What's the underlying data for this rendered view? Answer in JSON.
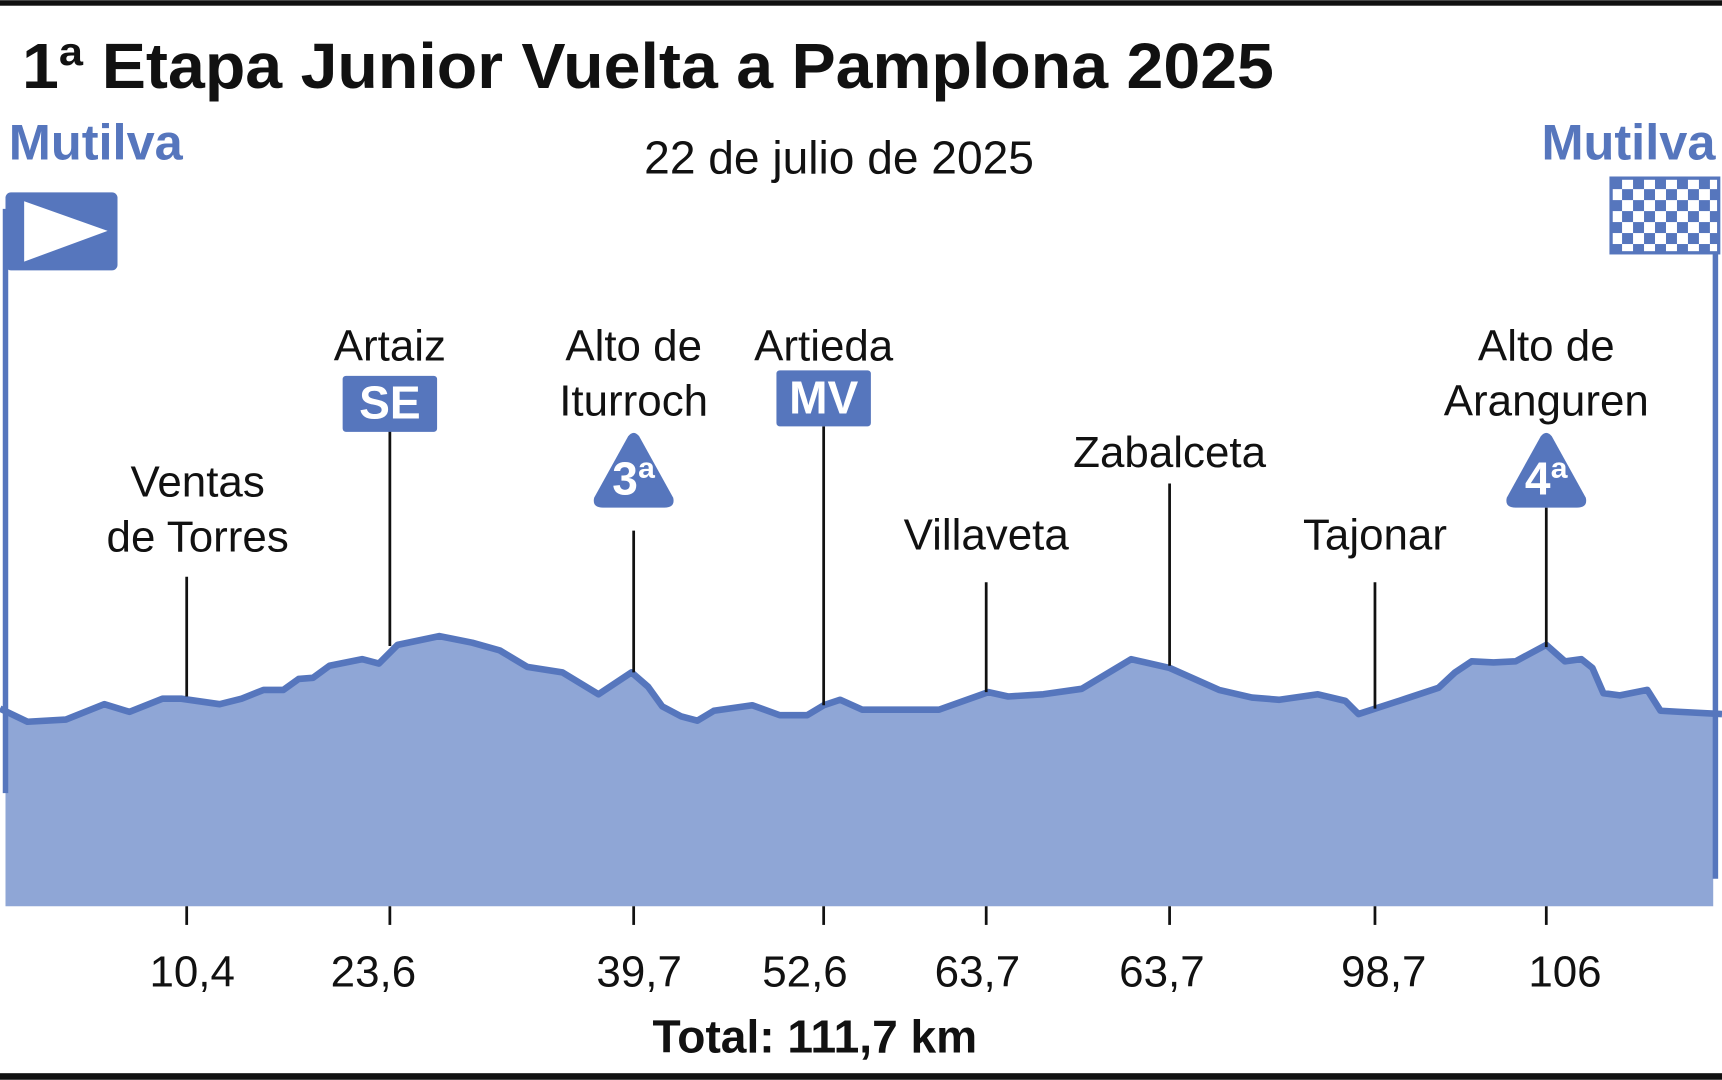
{
  "header": {
    "title": "1ª Etapa Junior Vuelta a Pamplona 2025",
    "date": "22 de julio de 2025",
    "start": "Mutilva",
    "finish": "Mutilva"
  },
  "points": [
    {
      "label": [
        "Ventas",
        "de Torres"
      ],
      "km": "10,4"
    },
    {
      "label": [
        "Artaiz"
      ],
      "badge": "SE",
      "km": "23,6"
    },
    {
      "label": [
        "Alto de",
        "Iturroch"
      ],
      "badge": "3ª",
      "km": "39,7"
    },
    {
      "label": [
        "Artieda"
      ],
      "badge": "MV",
      "km": "52,6"
    },
    {
      "label": [
        "Villaveta"
      ],
      "km": "63,7"
    },
    {
      "label": [
        "Zabalceta"
      ],
      "km": "63,7"
    },
    {
      "label": [
        "Tajonar"
      ],
      "km": "98,7"
    },
    {
      "label": [
        "Alto de",
        "Aranguren"
      ],
      "badge": "4ª",
      "km": "106"
    }
  ],
  "footer": {
    "total": "Total: 111,7 km"
  }
}
